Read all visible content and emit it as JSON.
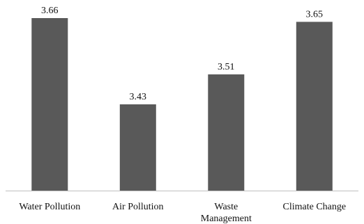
{
  "chart_data": {
    "type": "bar",
    "categories": [
      [
        "Water Pollution"
      ],
      [
        "Air Pollution"
      ],
      [
        "Waste",
        "Management"
      ],
      [
        "Climate Change"
      ]
    ],
    "values": [
      3.66,
      3.43,
      3.51,
      3.65
    ],
    "data_labels": [
      "3.66",
      "3.43",
      "3.51",
      "3.65"
    ],
    "bar_color": "#595959",
    "axis_color": "#bfbfbf",
    "ylim": [
      3.2,
      3.7
    ],
    "grid": false,
    "legend": "none"
  }
}
